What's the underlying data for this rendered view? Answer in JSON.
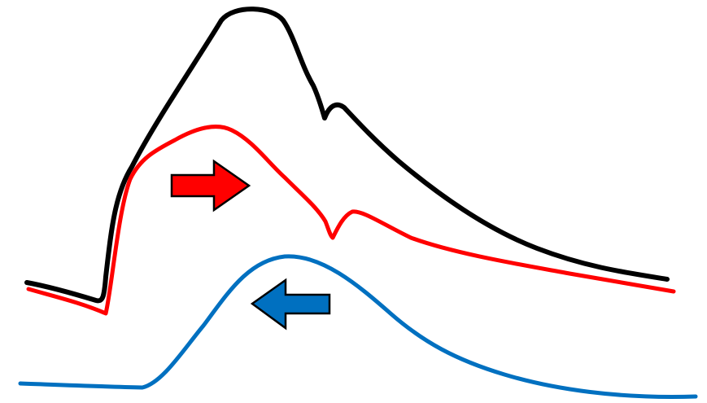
{
  "curves": [
    {
      "id": "black",
      "color": "#000000"
    },
    {
      "id": "red",
      "color": "#ff0000"
    },
    {
      "id": "blue",
      "color": "#0070c0"
    }
  ],
  "arrows": [
    {
      "id": "red",
      "direction": "right",
      "color": "#ff0000"
    },
    {
      "id": "blue",
      "direction": "left",
      "color": "#0070c0"
    }
  ]
}
